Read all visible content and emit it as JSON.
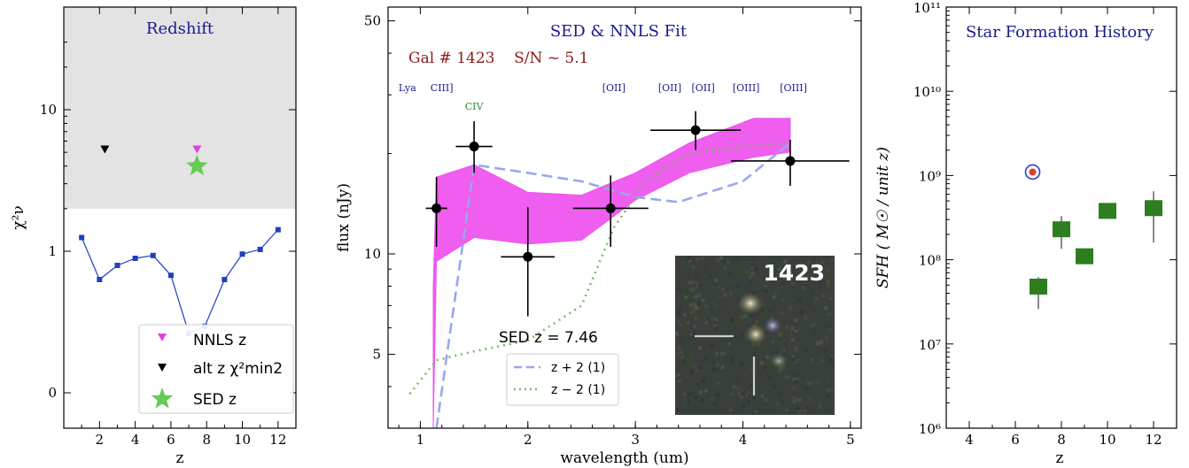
{
  "chart_data": [
    {
      "type": "scatter",
      "title": "Redshift",
      "xlabel": "z",
      "ylabel": "χ²ν",
      "xlim": [
        0,
        13
      ],
      "xticks": [
        "2",
        "4",
        "6",
        "8",
        "10",
        "12"
      ],
      "yticks": [
        "0",
        "1",
        "10"
      ],
      "chi2_curve": {
        "x": [
          1,
          2,
          3,
          4,
          5,
          6,
          7,
          7.9,
          9,
          10,
          11,
          12
        ],
        "y": [
          1.25,
          0.8,
          0.9,
          0.95,
          0.97,
          0.83,
          0.42,
          0.47,
          0.8,
          0.98,
          1.03,
          1.42
        ]
      },
      "markers": [
        {
          "name": "NNLS z",
          "x": 7.46,
          "y": 5.2
        },
        {
          "name": "alt z χ²min2",
          "x": 2.3,
          "y": 5.2
        },
        {
          "name": "SED z",
          "x": 7.46,
          "y": 4.0
        }
      ],
      "legend": [
        "NNLS z",
        "alt z χ²min2",
        "SED z"
      ],
      "legend_position": "lower-right",
      "shaded_region": "χ²ν ≥ 2",
      "colors": {
        "curve": "#1f3fbf",
        "nnls": "#e040e0",
        "alt": "#000000",
        "sed": "#66cc55",
        "shade": "#e3e3e3"
      }
    },
    {
      "type": "line",
      "title": "SED & NNLS Fit",
      "subtitle": "Gal # 1423    S/N ~ 5.1",
      "xlabel": "wavelength (um)",
      "ylabel": "flux (nJy)",
      "xlim": [
        0.7,
        5.1
      ],
      "ylim": [
        3,
        55
      ],
      "xticks": [
        "1",
        "2",
        "3",
        "4",
        "5"
      ],
      "yticks": [
        "5",
        "10",
        "50"
      ],
      "photometry": [
        {
          "x": 1.15,
          "y": 13.7,
          "xerr": 0.1,
          "ylo": 10.5,
          "yhi": 17
        },
        {
          "x": 1.5,
          "y": 21,
          "xerr": 0.17,
          "ylo": 17.5,
          "yhi": 25
        },
        {
          "x": 2.0,
          "y": 9.8,
          "xerr": 0.25,
          "ylo": 6.5,
          "yhi": 13.8
        },
        {
          "x": 2.77,
          "y": 13.7,
          "xerr": 0.35,
          "ylo": 10.5,
          "yhi": 17.2
        },
        {
          "x": 3.56,
          "y": 23.5,
          "xerr": 0.42,
          "ylo": 20.5,
          "yhi": 26.8
        },
        {
          "x": 4.44,
          "y": 19,
          "xerr": 0.55,
          "ylo": 16,
          "yhi": 22
        }
      ],
      "nnls_band": {
        "x": [
          1.12,
          1.15,
          1.5,
          2.0,
          2.5,
          3.0,
          3.5,
          4.1,
          4.44
        ],
        "lo": [
          3,
          9.5,
          11.2,
          10.7,
          11.0,
          14.5,
          17.5,
          19.5,
          20.2
        ],
        "hi": [
          8,
          17,
          18.5,
          15.3,
          15.0,
          17.5,
          21.5,
          25.5,
          25.5
        ]
      },
      "series": [
        {
          "name": "z + 2 (1)",
          "x": [
            1.15,
            1.5,
            2.0,
            2.5,
            3.0,
            3.4,
            4.0,
            4.44
          ],
          "y": [
            3,
            18.5,
            17.5,
            16.5,
            14.8,
            14.3,
            16.5,
            21.5
          ]
        },
        {
          "name": "z − 2 (1)",
          "x": [
            0.9,
            1.15,
            1.5,
            2.0,
            2.5,
            2.8,
            3.1,
            3.5,
            4.0,
            4.44
          ],
          "y": [
            3.8,
            4.8,
            5.1,
            5.5,
            7.0,
            12,
            16.5,
            20,
            21,
            21.5
          ]
        }
      ],
      "lines_labels": [
        {
          "label": "Lya",
          "x": 0.88,
          "color": "#1a1a8c",
          "row": 1
        },
        {
          "label": "CIII]",
          "x": 1.2,
          "color": "#1a1a8c",
          "row": 1
        },
        {
          "label": "CIV",
          "x": 1.5,
          "color": "#2e8b2e",
          "row": 2
        },
        {
          "label": "[OII]",
          "x": 2.8,
          "color": "#1a1a8c",
          "row": 1
        },
        {
          "label": "[OII]",
          "x": 3.32,
          "color": "#1a1a8c",
          "row": 1
        },
        {
          "label": "[OII]",
          "x": 3.63,
          "color": "#1a1a8c",
          "row": 1
        },
        {
          "label": "[OIII]",
          "x": 4.03,
          "color": "#1a1a8c",
          "row": 1
        },
        {
          "label": "[OIII]",
          "x": 4.47,
          "color": "#1a1a8c",
          "row": 1
        }
      ],
      "sed_z_label": "SED z = 7.46",
      "legend": [
        "z + 2 (1)",
        "z − 2 (1)"
      ],
      "inset_label": "1423",
      "colors": {
        "band": "#ee55ee",
        "zplus": "#9aa6ee",
        "zminus": "#77bb66",
        "points": "#000000",
        "subtitle": "#8b1a1a"
      }
    },
    {
      "type": "scatter",
      "title": "Star Formation History",
      "xlabel": "z",
      "ylabel": "SFH ( M☉ / unit z)",
      "xlim": [
        3,
        13
      ],
      "ylim": [
        1000000.0,
        100000000000.0
      ],
      "log_y": true,
      "xticks": [
        "4",
        "6",
        "8",
        "10",
        "12"
      ],
      "yticks": [
        "10⁶",
        "10⁷",
        "10⁸",
        "10⁹",
        "10¹⁰",
        "10¹¹"
      ],
      "bins": [
        {
          "x": 7,
          "y": 48000000.0,
          "ylo": 26000000.0,
          "yhi": 62000000.0
        },
        {
          "x": 8,
          "y": 230000000.0,
          "ylo": 135000000.0,
          "yhi": 330000000.0
        },
        {
          "x": 9,
          "y": 110000000.0,
          "ylo": 100000000.0,
          "yhi": 120000000.0
        },
        {
          "x": 10,
          "y": 380000000.0,
          "ylo": 340000000.0,
          "yhi": 420000000.0
        },
        {
          "x": 12,
          "y": 410000000.0,
          "ylo": 160000000.0,
          "yhi": 650000000.0
        }
      ],
      "marker": {
        "x": 6.75,
        "y": 1100000000.0
      },
      "colors": {
        "bins": "#2e7d1f",
        "marker_ring": "#2a3fcc",
        "marker_dot": "#e53d2a"
      }
    }
  ]
}
